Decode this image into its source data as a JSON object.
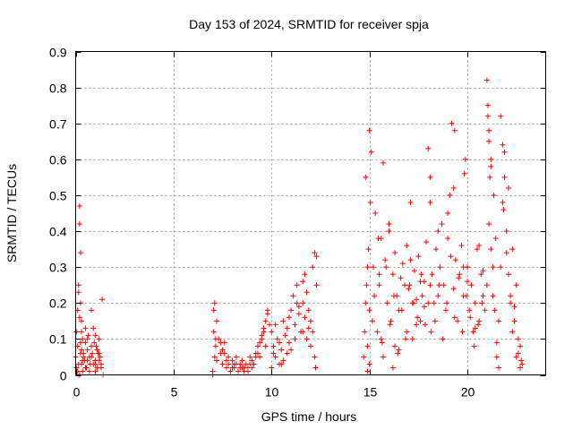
{
  "chart_data": {
    "type": "scatter",
    "title": "Day 153 of 2024, SRMTID for receiver spja",
    "xlabel": "GPS time / hours",
    "ylabel": "SRMTID / TECUs",
    "xlim": [
      0,
      24
    ],
    "ylim": [
      0,
      0.9
    ],
    "xticks": [
      "0",
      "5",
      "10",
      "15",
      "20"
    ],
    "xtick_values": [
      0,
      5,
      10,
      15,
      20
    ],
    "yticks": [
      "0",
      "0.1",
      "0.2",
      "0.3",
      "0.4",
      "0.5",
      "0.6",
      "0.7",
      "0.8",
      "0.9"
    ],
    "ytick_values": [
      0,
      0.1,
      0.2,
      0.3,
      0.4,
      0.5,
      0.6,
      0.7,
      0.8,
      0.9
    ],
    "grid": true,
    "marker": "+",
    "marker_color": "#ff0000",
    "series": [
      {
        "name": "SRMTID",
        "x": [
          0.0,
          0.05,
          0.1,
          0.15,
          0.2,
          0.25,
          0.3,
          0.35,
          0.4,
          0.45,
          0.5,
          0.55,
          0.6,
          0.65,
          0.7,
          0.75,
          0.8,
          0.85,
          0.9,
          0.95,
          1.0,
          1.05,
          1.1,
          1.15,
          1.2,
          1.25,
          1.3,
          1.35,
          0.05,
          0.1,
          0.15,
          0.2,
          0.25,
          0.3,
          0.4,
          0.5,
          0.6,
          0.7,
          0.8,
          0.9,
          1.0,
          1.1,
          1.2,
          1.3,
          0.1,
          0.15,
          0.2,
          0.25,
          0.3,
          0.35,
          0.5,
          0.6,
          0.8,
          1.0,
          1.2,
          0.2,
          0.25,
          0.3,
          0.35,
          1.0,
          1.4,
          7.0,
          7.05,
          7.1,
          7.15,
          7.2,
          7.3,
          7.4,
          7.5,
          7.6,
          7.7,
          7.8,
          7.9,
          8.0,
          8.1,
          8.2,
          8.3,
          8.4,
          8.5,
          8.6,
          8.7,
          8.8,
          8.9,
          9.0,
          9.1,
          9.2,
          9.3,
          9.4,
          9.5,
          9.6,
          9.7,
          9.8,
          9.9,
          7.0,
          7.1,
          7.2,
          7.4,
          7.6,
          7.8,
          8.0,
          8.2,
          8.4,
          8.6,
          8.8,
          9.0,
          9.2,
          9.4,
          9.6,
          9.8,
          7.05,
          7.15,
          7.5,
          7.7,
          8.1,
          8.5,
          8.9,
          9.3,
          9.5,
          9.7,
          10.0,
          10.1,
          10.2,
          10.3,
          10.4,
          10.5,
          10.6,
          10.7,
          10.8,
          10.9,
          11.0,
          11.1,
          11.2,
          11.3,
          11.4,
          11.5,
          11.6,
          11.7,
          11.8,
          11.9,
          12.0,
          12.1,
          12.2,
          12.3,
          10.0,
          10.2,
          10.4,
          10.6,
          10.8,
          11.0,
          11.2,
          11.4,
          11.6,
          11.8,
          12.0,
          12.2,
          10.1,
          10.5,
          10.9,
          11.3,
          11.7,
          12.1,
          12.25,
          12.3,
          11.9,
          11.6,
          14.7,
          14.8,
          14.9,
          15.0,
          15.1,
          15.2,
          15.3,
          15.4,
          15.5,
          15.6,
          15.7,
          15.8,
          15.9,
          16.0,
          16.1,
          16.2,
          16.3,
          16.4,
          16.5,
          16.6,
          16.7,
          16.8,
          16.9,
          17.0,
          17.1,
          17.2,
          17.3,
          17.4,
          17.5,
          17.6,
          17.7,
          17.8,
          17.9,
          18.0,
          14.75,
          14.85,
          14.95,
          15.05,
          15.15,
          15.25,
          15.45,
          15.65,
          15.85,
          16.05,
          16.25,
          16.45,
          16.65,
          16.85,
          17.05,
          17.25,
          17.45,
          17.65,
          17.85,
          14.8,
          14.9,
          15.0,
          15.5,
          15.6,
          16.0,
          16.3,
          16.9,
          17.1,
          17.4,
          17.8,
          18.0,
          14.9,
          15.0,
          15.7,
          16.2,
          16.5,
          17.2,
          17.6,
          18.1,
          18.1,
          18.2,
          18.3,
          18.4,
          18.5,
          18.6,
          18.7,
          18.8,
          18.9,
          19.0,
          19.1,
          19.2,
          19.3,
          19.4,
          19.5,
          19.6,
          19.7,
          19.8,
          19.9,
          20.0,
          20.1,
          20.2,
          20.3,
          20.4,
          20.5,
          20.6,
          20.7,
          20.8,
          20.9,
          18.15,
          18.35,
          18.55,
          18.75,
          18.95,
          19.15,
          19.35,
          19.55,
          19.75,
          19.95,
          20.15,
          20.35,
          20.55,
          20.75,
          18.1,
          18.5,
          19.0,
          19.3,
          19.35,
          19.8,
          19.85,
          20.0,
          20.4,
          20.6,
          20.8,
          21.0,
          21.05,
          21.1,
          21.15,
          21.2,
          21.3,
          21.4,
          21.5,
          21.6,
          21.7,
          21.8,
          21.9,
          22.0,
          22.1,
          22.2,
          22.3,
          22.4,
          22.5,
          22.6,
          22.7,
          22.8,
          21.0,
          21.1,
          21.2,
          21.3,
          21.5,
          21.7,
          21.9,
          22.1,
          22.3,
          22.5,
          22.7,
          21.05,
          21.1,
          21.2,
          21.35,
          21.45,
          21.6,
          21.8,
          21.85,
          22.0,
          22.2,
          22.4,
          22.6,
          22.75
        ],
        "y": [
          0.05,
          0.12,
          0.08,
          0.23,
          0.47,
          0.34,
          0.15,
          0.1,
          0.06,
          0.04,
          0.09,
          0.02,
          0.07,
          0.11,
          0.05,
          0.03,
          0.18,
          0.06,
          0.13,
          0.09,
          0.04,
          0.08,
          0.02,
          0.06,
          0.1,
          0.05,
          0.03,
          0.21,
          0.02,
          0.18,
          0.25,
          0.42,
          0.2,
          0.07,
          0.05,
          0.13,
          0.04,
          0.01,
          0.08,
          0.03,
          0.11,
          0.07,
          0.04,
          0.02,
          0.01,
          0.03,
          0.16,
          0.06,
          0.12,
          0.04,
          0.02,
          0.1,
          0.05,
          0.03,
          0.06,
          0.0,
          0.09,
          0.03,
          0.01,
          0.01,
          0.0,
          0.01,
          0.12,
          0.2,
          0.08,
          0.04,
          0.1,
          0.06,
          0.03,
          0.09,
          0.02,
          0.05,
          0.01,
          0.04,
          0.02,
          0.03,
          0.01,
          0.02,
          0.04,
          0.01,
          0.03,
          0.02,
          0.05,
          0.04,
          0.03,
          0.06,
          0.08,
          0.05,
          0.1,
          0.12,
          0.15,
          0.18,
          0.14,
          0.0,
          0.05,
          0.15,
          0.09,
          0.06,
          0.03,
          0.02,
          0.05,
          0.03,
          0.02,
          0.01,
          0.02,
          0.05,
          0.09,
          0.13,
          0.17,
          0.18,
          0.1,
          0.07,
          0.04,
          0.03,
          0.02,
          0.03,
          0.06,
          0.11,
          0.08,
          0.12,
          0.08,
          0.05,
          0.1,
          0.03,
          0.07,
          0.15,
          0.11,
          0.06,
          0.09,
          0.18,
          0.22,
          0.14,
          0.25,
          0.17,
          0.12,
          0.2,
          0.16,
          0.1,
          0.13,
          0.08,
          0.3,
          0.34,
          0.25,
          0.02,
          0.14,
          0.09,
          0.04,
          0.13,
          0.07,
          0.1,
          0.19,
          0.12,
          0.23,
          0.15,
          0.05,
          0.06,
          0.03,
          0.16,
          0.2,
          0.28,
          0.12,
          0.02,
          0.33,
          0.18,
          0.26,
          0.05,
          0.2,
          0.08,
          0.68,
          0.62,
          0.3,
          0.45,
          0.12,
          0.25,
          0.38,
          0.59,
          0.32,
          0.2,
          0.42,
          0.15,
          0.28,
          0.34,
          0.22,
          0.18,
          0.27,
          0.31,
          0.25,
          0.36,
          0.24,
          0.48,
          0.2,
          0.29,
          0.21,
          0.33,
          0.26,
          0.22,
          0.19,
          0.37,
          0.63,
          0.12,
          0.25,
          0.35,
          0.48,
          0.15,
          0.22,
          0.38,
          0.09,
          0.3,
          0.14,
          0.22,
          0.06,
          0.18,
          0.1,
          0.25,
          0.2,
          0.16,
          0.28,
          0.14,
          0.55,
          0.3,
          0.18,
          0.28,
          0.1,
          0.4,
          0.08,
          0.12,
          0.32,
          0.14,
          0.26,
          0.2,
          0.01,
          0.03,
          0.05,
          0.02,
          0.07,
          0.1,
          0.15,
          0.25,
          0.55,
          0.28,
          0.2,
          0.35,
          0.22,
          0.3,
          0.42,
          0.25,
          0.18,
          0.38,
          0.5,
          0.7,
          0.24,
          0.32,
          0.15,
          0.28,
          0.36,
          0.22,
          0.6,
          0.3,
          0.18,
          0.25,
          0.12,
          0.2,
          0.35,
          0.15,
          0.28,
          0.22,
          0.18,
          0.12,
          0.15,
          0.25,
          0.1,
          0.2,
          0.33,
          0.16,
          0.27,
          0.12,
          0.22,
          0.16,
          0.08,
          0.14,
          0.2,
          0.48,
          0.4,
          0.45,
          0.52,
          0.68,
          0.3,
          0.56,
          0.26,
          0.13,
          0.36,
          0.29,
          0.82,
          0.75,
          0.65,
          0.55,
          0.35,
          0.3,
          0.18,
          0.05,
          0.02,
          0.72,
          0.48,
          0.62,
          0.4,
          0.52,
          0.2,
          0.35,
          0.15,
          0.25,
          0.1,
          0.08,
          0.03,
          0.25,
          0.42,
          0.6,
          0.22,
          0.09,
          0.3,
          0.55,
          0.28,
          0.12,
          0.05,
          0.02,
          0.72,
          0.68,
          0.58,
          0.5,
          0.38,
          0.15,
          0.64,
          0.46,
          0.34,
          0.22,
          0.19,
          0.06,
          0.04
        ]
      }
    ]
  }
}
